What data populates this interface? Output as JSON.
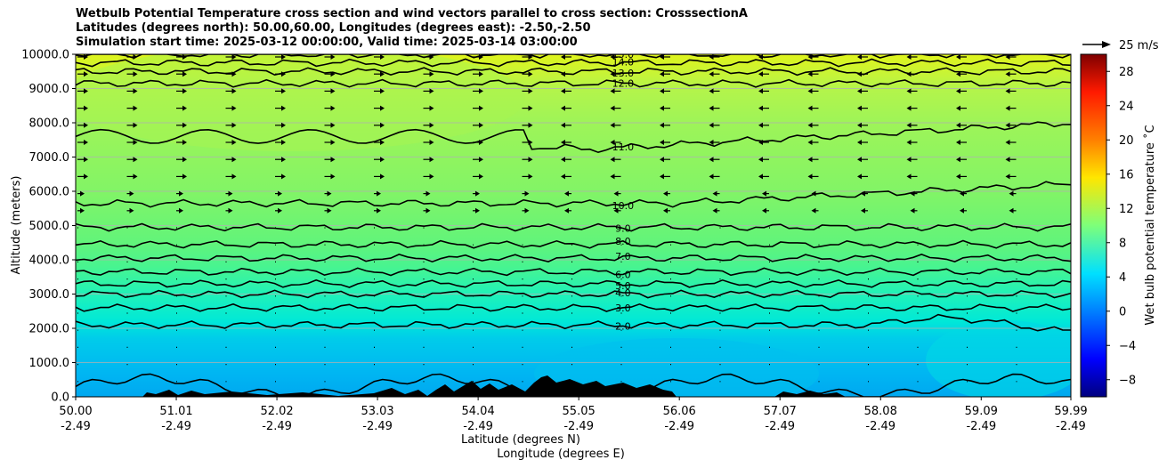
{
  "title": {
    "line1": "Wetbulb Potential Temperature cross section and wind vectors parallel to cross section: CrosssectionA",
    "line2": "Latitudes (degrees north): 50.00,60.00, Longitudes (degrees east): -2.50,-2.50",
    "line3": "Simulation start time: 2025-03-12 00:00:00, Valid time: 2025-03-14 03:00:00"
  },
  "chart_data": {
    "type": "heatmap",
    "title": "Wetbulb Potential Temperature cross section and wind vectors parallel to cross section: CrosssectionA",
    "xlabel": "Latitude (degrees N)",
    "xlabel2": "Longitude (degrees E)",
    "ylabel": "Altitude (meters)",
    "xlim": [
      50.0,
      59.99
    ],
    "ylim": [
      0,
      10000
    ],
    "x_ticks": [
      {
        "lat": "50.00",
        "lon": "-2.49"
      },
      {
        "lat": "51.01",
        "lon": "-2.49"
      },
      {
        "lat": "52.02",
        "lon": "-2.49"
      },
      {
        "lat": "53.03",
        "lon": "-2.49"
      },
      {
        "lat": "54.04",
        "lon": "-2.49"
      },
      {
        "lat": "55.05",
        "lon": "-2.49"
      },
      {
        "lat": "56.06",
        "lon": "-2.49"
      },
      {
        "lat": "57.07",
        "lon": "-2.49"
      },
      {
        "lat": "58.08",
        "lon": "-2.49"
      },
      {
        "lat": "59.09",
        "lon": "-2.49"
      },
      {
        "lat": "59.99",
        "lon": "-2.49"
      }
    ],
    "y_ticks": [
      "0.0",
      "1000.0",
      "2000.0",
      "3000.0",
      "4000.0",
      "5000.0",
      "6000.0",
      "7000.0",
      "8000.0",
      "9000.0",
      "10000.0"
    ],
    "colorbar": {
      "label": "Wet bulb potential temperature ˚C",
      "range": [
        -10,
        30
      ],
      "ticks": [
        "−8",
        "−4",
        "0",
        "4",
        "8",
        "12",
        "16",
        "20",
        "24",
        "28"
      ]
    },
    "quiver_key": "25 m/s",
    "contours": [
      {
        "level": "1.0",
        "base_km": 0.4
      },
      {
        "level": "2.0",
        "base_km": 2.1
      },
      {
        "level": "3.0",
        "base_km": 2.6
      },
      {
        "level": "4.0",
        "base_km": 3.0
      },
      {
        "level": "5.0",
        "base_km": 3.3
      },
      {
        "level": "6.0",
        "base_km": 3.65
      },
      {
        "level": "7.0",
        "base_km": 4.05
      },
      {
        "level": "8.0",
        "base_km": 4.45
      },
      {
        "level": "9.0",
        "base_km": 4.95
      },
      {
        "level": "10.0",
        "base_km": 5.65
      },
      {
        "level": "11.0",
        "base_km": 7.2
      },
      {
        "level": "12.0",
        "base_km": 9.15
      },
      {
        "level": "13.0",
        "base_km": 9.5
      },
      {
        "level": "14.0",
        "base_km": 9.75
      },
      {
        "level": "15.0",
        "base_km": 10.0
      }
    ]
  }
}
